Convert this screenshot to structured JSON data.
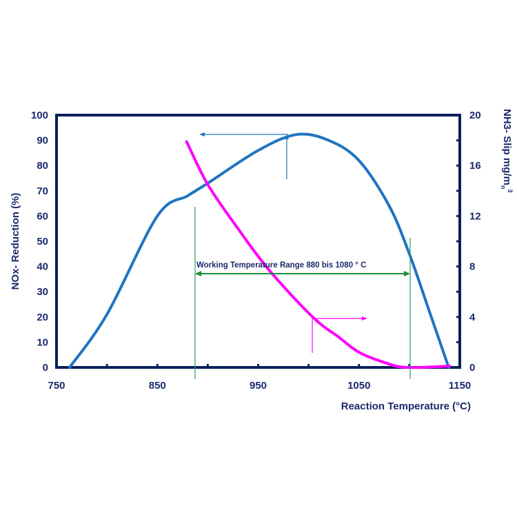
{
  "chart_data": {
    "type": "line",
    "xlabel": "Reaction Temperature (°C)",
    "ylabel": "NOx- Reduction (%)",
    "y2label": "NH3- Slip mg/m",
    "y2label_sub": "n",
    "y2label_sup": "3",
    "xlim": [
      750,
      1150
    ],
    "ylim": [
      0,
      100
    ],
    "y2lim": [
      0,
      20
    ],
    "xticks": [
      "750",
      "850",
      "950",
      "1050",
      "1150"
    ],
    "yticks": [
      "0",
      "10",
      "20",
      "30",
      "40",
      "50",
      "60",
      "70",
      "80",
      "90",
      "100"
    ],
    "y2ticks": [
      "0",
      "4",
      "8",
      "12",
      "16",
      "20"
    ],
    "annotation": "Working Temperature Range 880 bis 1080 ° C",
    "series": [
      {
        "name": "NOx-Reduction",
        "axis": "left",
        "color": "#1f74c0",
        "x": [
          763,
          800,
          850,
          880,
          900,
          950,
          988,
          1020,
          1050,
          1080,
          1100,
          1120,
          1139
        ],
        "y": [
          0,
          21,
          60,
          68,
          73,
          86,
          92.3,
          90,
          82,
          64,
          45,
          22,
          0
        ]
      },
      {
        "name": "NH3-Slip",
        "axis": "right",
        "color": "#ff00ff",
        "x": [
          879,
          900,
          930,
          961,
          1004,
          1030,
          1050,
          1075,
          1097,
          1140
        ],
        "y": [
          17.9,
          14.5,
          11,
          7.7,
          4,
          2.4,
          1.2,
          0.4,
          0,
          0.1
        ]
      }
    ]
  }
}
